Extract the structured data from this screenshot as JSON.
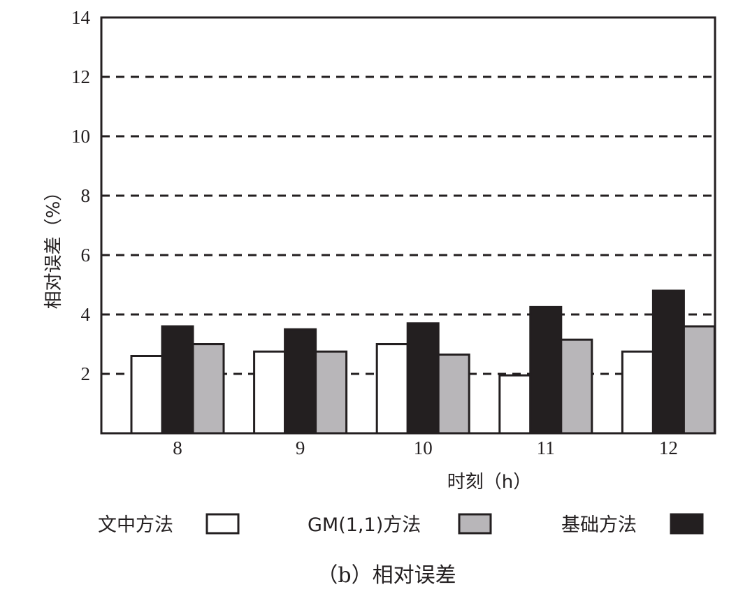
{
  "chart_data": {
    "type": "bar",
    "categories": [
      "8",
      "9",
      "10",
      "11",
      "12"
    ],
    "series": [
      {
        "name": "文中方法",
        "color": "#ffffff",
        "values": [
          2.6,
          2.75,
          3.0,
          1.95,
          2.75
        ]
      },
      {
        "name": "基础方法",
        "color": "#231f20",
        "values": [
          3.6,
          3.5,
          3.7,
          4.25,
          4.8
        ]
      },
      {
        "name": "GM(1,1)方法",
        "color": "#b8b6b9",
        "values": [
          3.0,
          2.75,
          2.65,
          3.15,
          3.6
        ]
      }
    ],
    "legend_order": [
      "文中方法",
      "GM(1,1)方法",
      "基础方法"
    ],
    "xlabel": "时刻（h）",
    "ylabel": "相对误差（%）",
    "y_ticks": [
      "2",
      "4",
      "6",
      "8",
      "10",
      "12",
      "14"
    ],
    "ylim": [
      0,
      14
    ],
    "grid": "dashed horizontal",
    "legend_position": "bottom",
    "caption": "（b）相对误差"
  }
}
